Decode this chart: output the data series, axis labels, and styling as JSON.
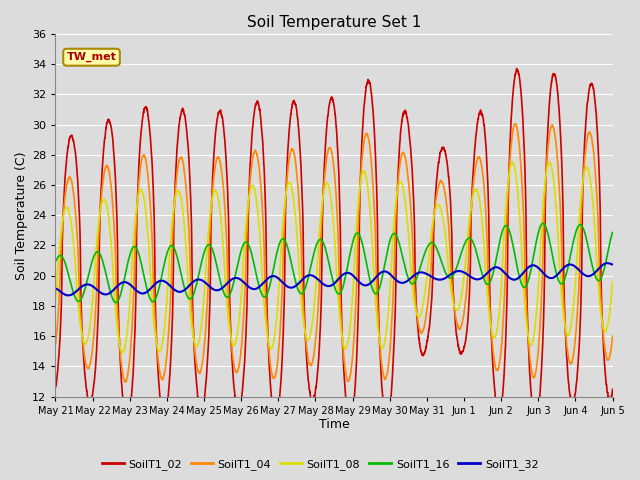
{
  "title": "Soil Temperature Set 1",
  "xlabel": "Time",
  "ylabel": "Soil Temperature (C)",
  "ylim": [
    12,
    36
  ],
  "yticks": [
    12,
    14,
    16,
    18,
    20,
    22,
    24,
    26,
    28,
    30,
    32,
    34,
    36
  ],
  "bg_color": "#dcdcdc",
  "plot_bg_color": "#dcdcdc",
  "grid_color": "#ffffff",
  "series": {
    "SoilT1_02": {
      "color": "#cc0000",
      "lw": 1.2
    },
    "SoilT1_04": {
      "color": "#ff8800",
      "lw": 1.2
    },
    "SoilT1_08": {
      "color": "#dddd00",
      "lw": 1.2
    },
    "SoilT1_16": {
      "color": "#00bb00",
      "lw": 1.2
    },
    "SoilT1_32": {
      "color": "#0000cc",
      "lw": 1.5
    }
  },
  "annotation": {
    "text": "TW_met",
    "fgcolor": "#aa0000",
    "bgcolor": "#ffffaa",
    "edgecolor": "#aa8800",
    "fontsize": 8
  },
  "xtick_labels": [
    "May 21",
    "May 22",
    "May 23",
    "May 24",
    "May 25",
    "May 26",
    "May 27",
    "May 28",
    "May 29",
    "May 30",
    "May 31",
    "Jun 1",
    "Jun 2",
    "Jun 3",
    "Jun 4",
    "Jun 5"
  ],
  "num_days": 15
}
